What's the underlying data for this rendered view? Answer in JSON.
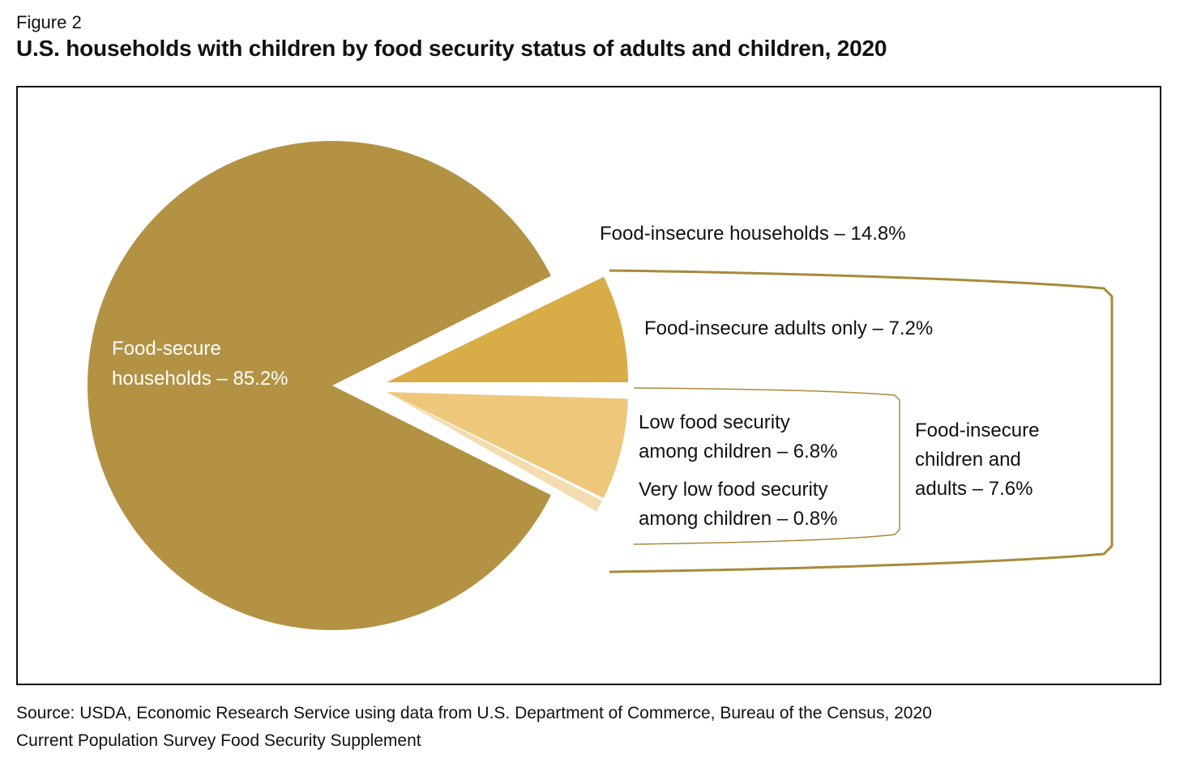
{
  "figure_label": "Figure 2",
  "title": "U.S. households with children by food security status of adults and children, 2020",
  "source_lines": [
    "Source: USDA, Economic Research Service using data from U.S. Department of Commerce, Bureau of the Census, 2020",
    "Current Population Survey Food Security Supplement"
  ],
  "colors": {
    "food_secure": "#b39244",
    "adults_only": "#d8ad47",
    "low_children": "#eec77b",
    "very_low_children": "#f3ddb0",
    "bracket": "#a88a3a"
  },
  "chart_data": {
    "type": "pie",
    "unit": "%",
    "slices": [
      {
        "label": "Food-secure households",
        "value": 85.2,
        "display": [
          "Food-secure",
          "households – 85.2%"
        ]
      },
      {
        "label": "Food-insecure adults only",
        "value": 7.2,
        "display": [
          "Food-insecure adults only – 7.2%"
        ]
      },
      {
        "label": "Low food security among children",
        "value": 6.8,
        "display": [
          "Low food security",
          "among children – 6.8%"
        ]
      },
      {
        "label": "Very low food security among children",
        "value": 0.8,
        "display": [
          "Very low food security",
          "among children – 0.8%"
        ]
      }
    ],
    "groups": [
      {
        "label": "Food-insecure households – 14.8%",
        "value": 14.8
      },
      {
        "label": "Food-insecure children and adults – 7.6%",
        "value": 7.6,
        "display": [
          "Food-insecure",
          "children and",
          "adults  – 7.6%"
        ]
      }
    ]
  }
}
